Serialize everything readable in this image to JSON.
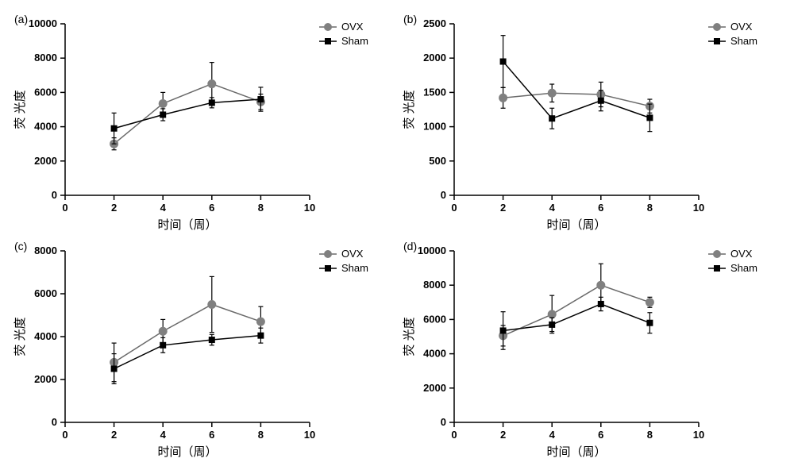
{
  "colors": {
    "bg": "#ffffff",
    "axis": "#000000",
    "tick": "#000000",
    "text": "#000000",
    "ovx_marker": "#808080",
    "ovx_line": "#6a6a6a",
    "sham_marker": "#000000",
    "sham_line": "#000000",
    "error": "#000000"
  },
  "axis_label_x": "时间（周）",
  "axis_label_y": "荧 光度",
  "legend": {
    "ovx": "OVX",
    "sham": "Sham"
  },
  "typography": {
    "axis_label_fontsize": 15,
    "tick_fontsize": 13,
    "legend_fontsize": 13,
    "panel_label_fontsize": 14
  },
  "line_width": 1.5,
  "marker_size_ovx": 5,
  "marker_size_sham": 4,
  "error_cap_width": 6,
  "panels": {
    "a": {
      "label": "(a)",
      "xlim": [
        0,
        10
      ],
      "xtick_step": 2,
      "ylim": [
        0,
        10000
      ],
      "ytick_step": 2000,
      "x": [
        2,
        4,
        6,
        8
      ],
      "ovx": {
        "y": [
          3000,
          5350,
          6500,
          5450
        ],
        "err": [
          350,
          650,
          1250,
          450
        ]
      },
      "sham": {
        "y": [
          3900,
          4700,
          5400,
          5600
        ],
        "err": [
          900,
          350,
          300,
          700
        ]
      }
    },
    "b": {
      "label": "(b)",
      "xlim": [
        0,
        10
      ],
      "xtick_step": 2,
      "ylim": [
        0,
        2500
      ],
      "ytick_step": 500,
      "x": [
        2,
        4,
        6,
        8
      ],
      "ovx": {
        "y": [
          1420,
          1490,
          1470,
          1300
        ],
        "err": [
          150,
          130,
          180,
          100
        ]
      },
      "sham": {
        "y": [
          1950,
          1120,
          1380,
          1130
        ],
        "err": [
          380,
          150,
          150,
          200
        ]
      }
    },
    "c": {
      "label": "(c)",
      "xlim": [
        0,
        10
      ],
      "xtick_step": 2,
      "ylim": [
        0,
        8000
      ],
      "ytick_step": 2000,
      "x": [
        2,
        4,
        6,
        8
      ],
      "ovx": {
        "y": [
          2800,
          4250,
          5500,
          4700
        ],
        "err": [
          900,
          550,
          1300,
          700
        ]
      },
      "sham": {
        "y": [
          2500,
          3600,
          3850,
          4050
        ],
        "err": [
          700,
          350,
          250,
          350
        ]
      }
    },
    "d": {
      "label": "(d)",
      "xlim": [
        0,
        10
      ],
      "xtick_step": 2,
      "ylim": [
        0,
        10000
      ],
      "ytick_step": 2000,
      "x": [
        2,
        4,
        6,
        8
      ],
      "ovx": {
        "y": [
          5050,
          6300,
          8000,
          7000
        ],
        "err": [
          600,
          1100,
          1250,
          300
        ]
      },
      "sham": {
        "y": [
          5350,
          5700,
          6900,
          5800
        ],
        "err": [
          1100,
          400,
          400,
          600
        ]
      }
    }
  }
}
